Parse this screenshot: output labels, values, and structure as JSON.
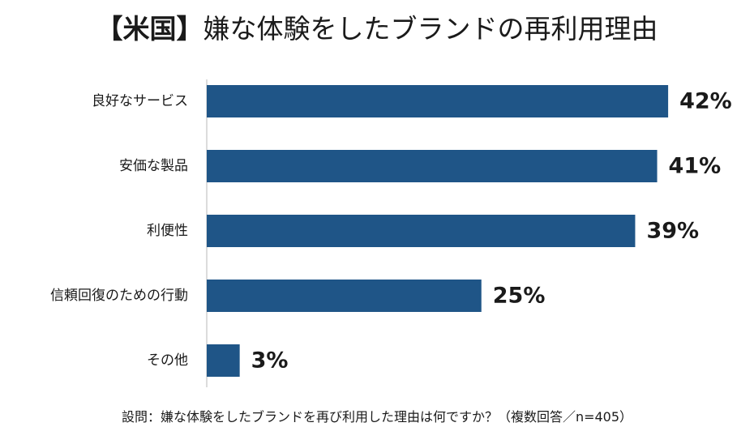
{
  "title": {
    "prefix": "【米国】",
    "main": "嫌な体験をしたブランドの再利用理由"
  },
  "footnote": "設問：嫌な体験をしたブランドを再び利用した理由は何ですか？（複数回答／n=405）",
  "colors": {
    "bar": "#1f5587",
    "axis": "#d0d0d0",
    "label": "#1a1a1a"
  },
  "chart_data": {
    "type": "bar",
    "orientation": "horizontal",
    "categories": [
      "良好なサービス",
      "安価な製品",
      "利便性",
      "信頼回復のための行動",
      "その他"
    ],
    "values": [
      42,
      41,
      39,
      25,
      3
    ],
    "value_labels": [
      "42%",
      "41%",
      "39%",
      "25%",
      "3%"
    ],
    "unit": "%",
    "xlim": [
      0,
      45
    ],
    "grid": false,
    "legend": "none"
  }
}
